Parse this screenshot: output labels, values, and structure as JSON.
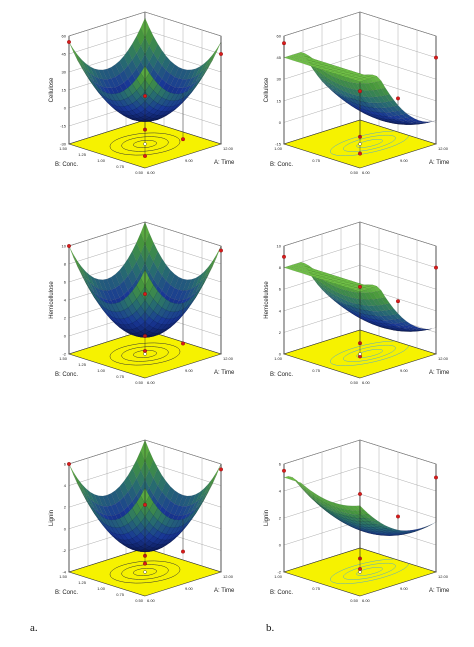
{
  "panel_labels": [
    "a.",
    "b."
  ],
  "chart_data": [
    {
      "type": "surface",
      "column": "a",
      "zlabel": "Cellulose",
      "xlabel": "A: Time",
      "ylabel": "B: Conc.",
      "x_ticks": [
        "6.00",
        "9.00",
        "12.00"
      ],
      "y_ticks": [
        "0.50",
        "0.75",
        "1.00",
        "1.25",
        "1.50"
      ],
      "z_ticks": [
        "60",
        "45",
        "30",
        "15",
        "0",
        "-15",
        "-30"
      ],
      "zlim": [
        -30,
        60
      ],
      "surface": {
        "shape": "bowl",
        "min": -10,
        "corner_max": 55,
        "skew": 0
      },
      "points": [
        55,
        45,
        -18,
        -20,
        -10,
        -16
      ]
    },
    {
      "type": "surface",
      "column": "b",
      "zlabel": "Cellulose",
      "xlabel": "A: Time",
      "ylabel": "B: Conc.",
      "x_ticks": [
        "6.00",
        "9.00",
        "12.00"
      ],
      "y_ticks": [
        "0.50",
        "0.75",
        "1.00"
      ],
      "z_ticks": [
        "60",
        "45",
        "30",
        "15",
        "0",
        "-15"
      ],
      "zlim": [
        -15,
        60
      ],
      "surface": {
        "shape": "tilted",
        "min": -10,
        "corner_max": 45,
        "skew": 0.5
      },
      "points": [
        55,
        45,
        -10,
        -5,
        5,
        25
      ]
    },
    {
      "type": "surface",
      "column": "a",
      "zlabel": "Hemicellulose",
      "xlabel": "A: Time",
      "ylabel": "B: Conc.",
      "x_ticks": [
        "6.00",
        "9.00",
        "12.00"
      ],
      "y_ticks": [
        "0.50",
        "0.75",
        "1.00",
        "1.25",
        "1.50"
      ],
      "z_ticks": [
        "10",
        "8",
        "6",
        "4",
        "2",
        "0",
        "-2"
      ],
      "zlim": [
        -2,
        10
      ],
      "surface": {
        "shape": "bowl",
        "min": 0,
        "corner_max": 10,
        "skew": 0
      },
      "points": [
        10,
        9.5,
        0,
        1,
        2,
        0.5
      ]
    },
    {
      "type": "surface",
      "column": "b",
      "zlabel": "Hemicellulose",
      "xlabel": "A: Time",
      "ylabel": "B: Conc.",
      "x_ticks": [
        "6.00",
        "9.00",
        "12.00"
      ],
      "y_ticks": [
        "0.50",
        "0.75",
        "1.00"
      ],
      "z_ticks": [
        "10",
        "8",
        "6",
        "4",
        "2",
        "0"
      ],
      "zlim": [
        0,
        10
      ],
      "surface": {
        "shape": "tilted",
        "min": 1,
        "corner_max": 8,
        "skew": 0.5
      },
      "points": [
        9,
        8,
        1,
        2,
        4,
        6
      ]
    },
    {
      "type": "surface",
      "column": "a",
      "zlabel": "Lignin",
      "xlabel": "A: Time",
      "ylabel": "B: Conc.",
      "x_ticks": [
        "6.00",
        "9.00",
        "12.00"
      ],
      "y_ticks": [
        "0.50",
        "0.75",
        "1.00",
        "1.25",
        "1.50"
      ],
      "z_ticks": [
        "6",
        "4",
        "2",
        "0",
        "-2",
        "-4"
      ],
      "zlim": [
        -4,
        6
      ],
      "surface": {
        "shape": "bowl",
        "min": -2,
        "corner_max": 6,
        "skew": 0
      },
      "points": [
        6,
        5.5,
        -2.5,
        -1,
        0,
        -1
      ]
    },
    {
      "type": "surface",
      "column": "b",
      "zlabel": "Lignin",
      "xlabel": "A: Time",
      "ylabel": "B: Conc.",
      "x_ticks": [
        "6.00",
        "9.00",
        "12.00"
      ],
      "y_ticks": [
        "0.50",
        "0.75",
        "1.00"
      ],
      "z_ticks": [
        "6",
        "4",
        "2",
        "0",
        "-2"
      ],
      "zlim": [
        -2,
        6
      ],
      "surface": {
        "shape": "saddle",
        "min": -1,
        "corner_max": 5,
        "skew": 0.5
      },
      "points": [
        5.5,
        5,
        -1,
        0,
        2,
        3
      ]
    }
  ]
}
